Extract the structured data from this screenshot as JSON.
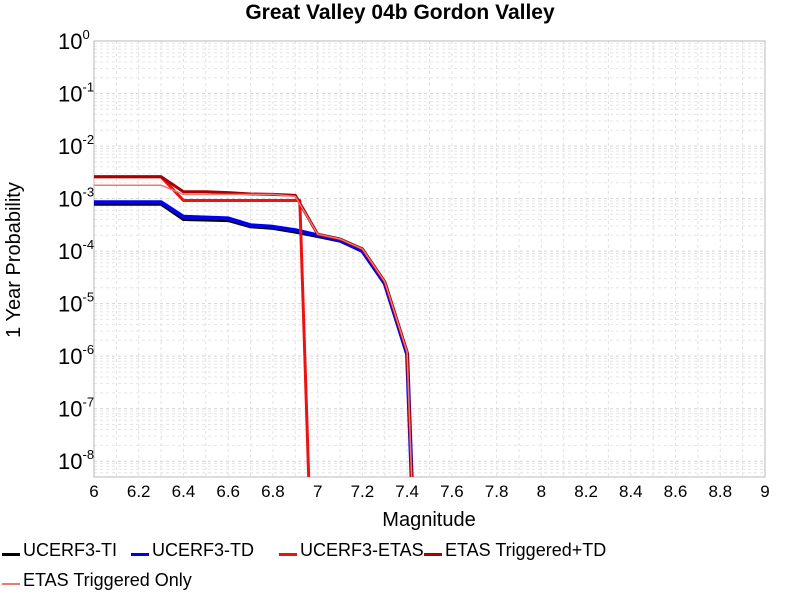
{
  "chart_data": {
    "type": "line",
    "title": "Great Valley 04b Gordon Valley",
    "xlabel": "Magnitude",
    "ylabel": "1 Year Probability",
    "xlim": [
      6,
      9
    ],
    "ylim": [
      5e-09,
      1
    ],
    "yscale": "log",
    "grid": true,
    "legend_position": "bottom",
    "x_ticks": [
      "6",
      "6.2",
      "6.4",
      "6.6",
      "6.8",
      "7",
      "7.2",
      "7.4",
      "7.6",
      "7.8",
      "8",
      "8.2",
      "8.4",
      "8.6",
      "8.8",
      "9"
    ],
    "y_ticks": [
      {
        "base": "10",
        "exp": "0",
        "value": 1
      },
      {
        "base": "10",
        "exp": "-1",
        "value": 0.1
      },
      {
        "base": "10",
        "exp": "-2",
        "value": 0.01
      },
      {
        "base": "10",
        "exp": "-3",
        "value": 0.001
      },
      {
        "base": "10",
        "exp": "-4",
        "value": 0.0001
      },
      {
        "base": "10",
        "exp": "-5",
        "value": 1e-05
      },
      {
        "base": "10",
        "exp": "-6",
        "value": 1e-06
      },
      {
        "base": "10",
        "exp": "-7",
        "value": 1e-07
      },
      {
        "base": "10",
        "exp": "-8",
        "value": 1e-08
      }
    ],
    "series": [
      {
        "name": "UCERF3-TI",
        "color": "#000000",
        "width": 3,
        "points": [
          [
            6.0,
            0.00078
          ],
          [
            6.3,
            0.00078
          ],
          [
            6.4,
            0.0004
          ],
          [
            6.6,
            0.00038
          ],
          [
            6.7,
            0.00029
          ],
          [
            6.8,
            0.00027
          ],
          [
            6.9,
            0.00023
          ],
          [
            7.0,
            0.00019
          ],
          [
            7.1,
            0.000155
          ],
          [
            7.2,
            0.0001
          ],
          [
            7.3,
            2.4e-05
          ],
          [
            7.4,
            1.1e-06
          ],
          [
            7.42,
            5e-09
          ]
        ]
      },
      {
        "name": "UCERF3-TD",
        "color": "#0000ee",
        "width": 4,
        "points": [
          [
            6.0,
            0.00085
          ],
          [
            6.3,
            0.00085
          ],
          [
            6.4,
            0.00045
          ],
          [
            6.6,
            0.00042
          ],
          [
            6.7,
            0.00031
          ],
          [
            6.8,
            0.00029
          ],
          [
            6.9,
            0.00025
          ],
          [
            7.0,
            0.0002
          ],
          [
            7.1,
            0.00016
          ],
          [
            7.2,
            0.0001
          ],
          [
            7.3,
            2.4e-05
          ],
          [
            7.4,
            1.1e-06
          ],
          [
            7.42,
            5e-09
          ]
        ]
      },
      {
        "name": "UCERF3-ETAS",
        "color": "#ee1111",
        "width": 3,
        "points": [
          [
            6.0,
            0.0026
          ],
          [
            6.3,
            0.0026
          ],
          [
            6.4,
            0.00092
          ],
          [
            6.8,
            0.00092
          ],
          [
            6.92,
            0.00092
          ],
          [
            6.96,
            5e-09
          ]
        ]
      },
      {
        "name": "ETAS Triggered+TD",
        "color": "#aa0000",
        "width": 3,
        "points": [
          [
            6.0,
            0.0026
          ],
          [
            6.3,
            0.0026
          ],
          [
            6.4,
            0.00135
          ],
          [
            6.5,
            0.00135
          ],
          [
            6.6,
            0.0013
          ],
          [
            6.7,
            0.00122
          ],
          [
            6.8,
            0.0012
          ],
          [
            6.9,
            0.00115
          ],
          [
            7.0,
            0.00021
          ],
          [
            7.1,
            0.00017
          ],
          [
            7.2,
            0.00011
          ],
          [
            7.3,
            2.6e-05
          ],
          [
            7.4,
            1.2e-06
          ],
          [
            7.42,
            5e-09
          ]
        ]
      },
      {
        "name": "ETAS Triggered Only",
        "color": "#ee7777",
        "width": 1.5,
        "points": [
          [
            6.0,
            0.0018
          ],
          [
            6.3,
            0.0018
          ],
          [
            6.4,
            0.0012
          ],
          [
            6.8,
            0.0012
          ],
          [
            6.9,
            0.0011
          ],
          [
            7.0,
            0.00021
          ],
          [
            7.1,
            0.00017
          ],
          [
            7.2,
            0.00011
          ],
          [
            7.3,
            2.6e-05
          ],
          [
            7.4,
            1.2e-06
          ],
          [
            7.42,
            5e-09
          ]
        ]
      }
    ]
  }
}
